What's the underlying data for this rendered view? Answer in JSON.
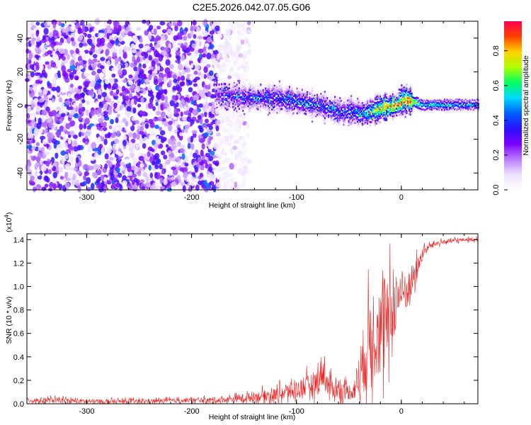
{
  "title": "C2E5.2026.042.07.05.G06",
  "chart_data": [
    {
      "type": "heatmap",
      "xlabel": "Height of straight line (km)",
      "ylabel": "Frequency (Hz)",
      "xlim": [
        -357,
        73
      ],
      "ylim": [
        -50,
        50
      ],
      "xticks": [
        -300,
        -200,
        -100,
        0
      ],
      "yticks": [
        -40,
        -20,
        0,
        20,
        40
      ],
      "colorbar": {
        "label": "Normalized spectral amplitude",
        "range": [
          0,
          0.97
        ],
        "ticks": [
          "0.0",
          "0.2",
          "0.4",
          "0.6",
          "0.8"
        ],
        "colors": [
          "#ffffff",
          "#ece0ff",
          "#bb7cff",
          "#7a00ff",
          "#2a10ff",
          "#0060ff",
          "#00d8ff",
          "#00ff60",
          "#b0ff00",
          "#ffd000",
          "#ff4000",
          "#ff0050"
        ]
      },
      "noise_region": {
        "x_range": [
          -357,
          -145
        ],
        "freq_range": [
          -50,
          50
        ]
      },
      "signal_track": {
        "x": [
          -178,
          -160,
          -140,
          -120,
          -100,
          -80,
          -60,
          -45,
          -35,
          -25,
          -15,
          -5,
          0,
          5,
          10,
          20,
          40,
          73
        ],
        "freq": [
          7,
          6,
          5,
          5,
          3,
          1,
          -3,
          -3,
          -4,
          -2,
          0,
          1,
          3,
          4,
          3,
          1,
          1,
          1
        ],
        "peak_amplitude": [
          0.3,
          0.35,
          0.4,
          0.4,
          0.45,
          0.4,
          0.4,
          0.45,
          0.5,
          0.75,
          0.85,
          0.9,
          0.85,
          0.9,
          0.9,
          0.6,
          0.55,
          0.5
        ]
      }
    },
    {
      "type": "line",
      "xlabel": "Height of straight line (km)",
      "ylabel": "SNR (10 * v/v)",
      "yscale_label": "(x10",
      "yscale_exp": "4",
      "xlim": [
        -357,
        73
      ],
      "ylim": [
        0,
        1.45
      ],
      "xticks": [
        -300,
        -200,
        -100,
        0
      ],
      "yticks": [
        "0.0",
        "0.2",
        "0.4",
        "0.6",
        "0.8",
        "1.0",
        "1.2",
        "1.4"
      ],
      "color": "#ee2222",
      "series": [
        {
          "x": [
            -357,
            -330,
            -300,
            -250,
            -200,
            -180,
            -160,
            -150,
            -140,
            -120,
            -110,
            -100,
            -90,
            -80,
            -75,
            -70,
            -60,
            -50,
            -45,
            -40,
            -35,
            -30,
            -25,
            -20,
            -15,
            -10,
            -5,
            0,
            5,
            10,
            15,
            20,
            25,
            30,
            40,
            50,
            60,
            73
          ],
          "values": [
            0.03,
            0.03,
            0.02,
            0.02,
            0.03,
            0.03,
            0.04,
            0.05,
            0.06,
            0.08,
            0.1,
            0.12,
            0.15,
            0.18,
            0.3,
            0.15,
            0.12,
            0.1,
            0.12,
            0.25,
            0.4,
            0.55,
            0.7,
            0.6,
            0.65,
            0.75,
            0.9,
            0.95,
            0.95,
            1.05,
            1.15,
            1.28,
            1.33,
            1.36,
            1.38,
            1.39,
            1.4,
            1.4
          ],
          "spread": [
            0.05,
            0.05,
            0.04,
            0.04,
            0.04,
            0.05,
            0.06,
            0.08,
            0.09,
            0.12,
            0.15,
            0.17,
            0.2,
            0.25,
            0.35,
            0.2,
            0.18,
            0.15,
            0.2,
            0.45,
            0.7,
            0.75,
            0.85,
            0.9,
            0.85,
            0.7,
            0.55,
            0.4,
            0.35,
            0.3,
            0.2,
            0.1,
            0.06,
            0.05,
            0.04,
            0.04,
            0.03,
            0.03
          ]
        }
      ]
    }
  ]
}
